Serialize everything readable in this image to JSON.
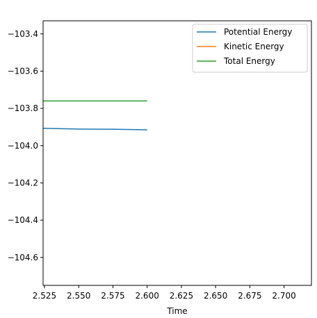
{
  "chart_data": {
    "type": "line",
    "title": "",
    "xlabel": "Time",
    "ylabel": "",
    "xlim": [
      2.524,
      2.72
    ],
    "ylim": [
      -104.75,
      -103.33
    ],
    "xticks": [
      2.525,
      2.55,
      2.575,
      2.6,
      2.625,
      2.65,
      2.675,
      2.7
    ],
    "xtick_labels": [
      "2.525",
      "2.550",
      "2.575",
      "2.600",
      "2.625",
      "2.650",
      "2.675",
      "2.700"
    ],
    "yticks": [
      -103.4,
      -103.6,
      -103.8,
      -104.0,
      -104.2,
      -104.4,
      -104.6
    ],
    "ytick_labels": [
      "−103.4",
      "−103.6",
      "−103.8",
      "−104.0",
      "−104.2",
      "−104.4",
      "−104.6"
    ],
    "grid": false,
    "legend_position": "top-right",
    "series": [
      {
        "name": "Potential Energy",
        "color": "#1f77b4",
        "x": [
          2.524,
          2.55,
          2.575,
          2.6
        ],
        "y": [
          -103.907,
          -103.911,
          -103.912,
          -103.915
        ]
      },
      {
        "name": "Kinetic Energy",
        "color": "#ff7f0e",
        "x": [],
        "y": []
      },
      {
        "name": "Total Energy",
        "color": "#2ca02c",
        "x": [
          2.524,
          2.55,
          2.575,
          2.6
        ],
        "y": [
          -103.76,
          -103.76,
          -103.76,
          -103.76
        ]
      }
    ]
  }
}
